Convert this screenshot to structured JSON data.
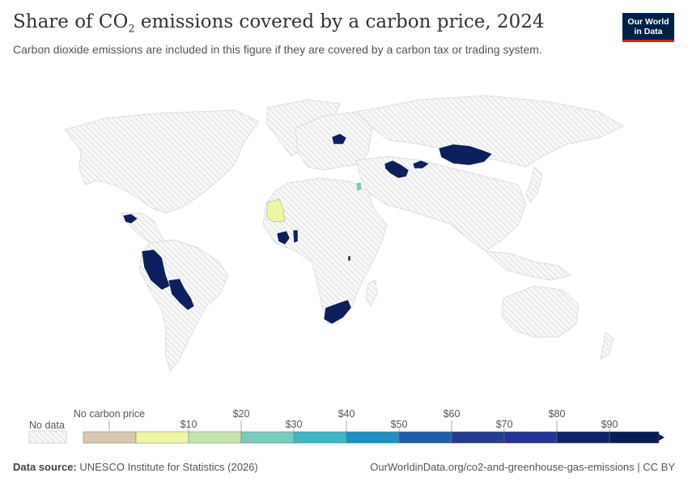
{
  "header": {
    "title_prefix": "Share of CO",
    "title_sub": "2",
    "title_suffix": " emissions covered by a carbon price, 2024",
    "subtitle": "Carbon dioxide emissions are included in this figure if they are covered by a carbon tax or trading system."
  },
  "logo": {
    "line1": "Our World",
    "line2": "in Data"
  },
  "legend": {
    "no_data_label": "No data",
    "no_carbon_label": "No carbon price",
    "tick_labels": [
      "$10",
      "$20",
      "$30",
      "$40",
      "$50",
      "$60",
      "$70",
      "$80",
      "$90"
    ],
    "bin_colors": [
      "#d9c8b1",
      "#eef6a5",
      "#c4e4ad",
      "#77ccbe",
      "#3fb5c4",
      "#1d91c0",
      "#225ea8",
      "#243d8f",
      "#253494",
      "#11206a",
      "#081d58"
    ]
  },
  "colors": {
    "no_data": "#f0f0f0",
    "highest_bin": "#0d1f5c",
    "mid_green": "#7dcbb6",
    "pale_yellow": "#eef6a5"
  },
  "map_countries_highlighted": [
    "Mongolia",
    "Turkmenistan",
    "Uzbekistan",
    "Kyrgyzstan",
    "Belarus",
    "Guatemala",
    "Honduras",
    "Peru",
    "Bolivia",
    "Paraguay",
    "Ivory Coast",
    "Ghana",
    "South Africa",
    "Lesotho",
    "Burundi",
    "Jordan",
    "Mauritania"
  ],
  "footer": {
    "source_label": "Data source:",
    "source_text": " UNESCO Institute for Statistics (2026)",
    "url_text": "OurWorldinData.org/co2-and-greenhouse-gas-emissions | CC BY"
  }
}
